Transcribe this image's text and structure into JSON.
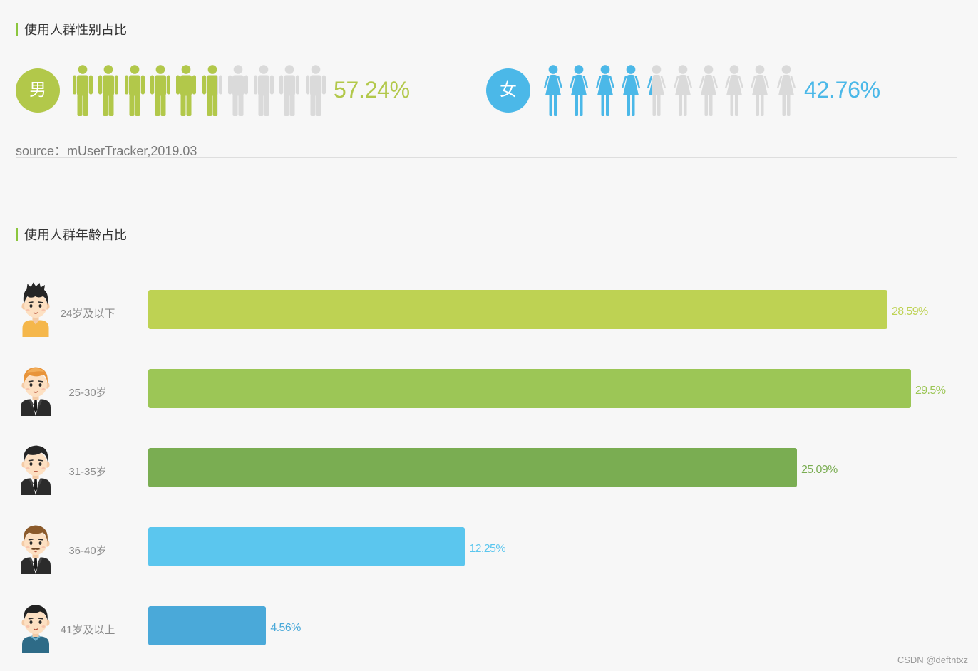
{
  "chart_data": [
    {
      "type": "bar",
      "title": "使用人群性别占比",
      "categories": [
        "男",
        "女"
      ],
      "values": [
        57.24,
        42.76
      ],
      "value_labels": [
        "57.24%",
        "42.76%"
      ],
      "icon_count": 10,
      "icons": [
        "male-figure-icon",
        "female-figure-icon"
      ],
      "colors": [
        "#b2c84a",
        "#4bb8e8"
      ],
      "empty_color": "#dadada",
      "source": "source：mUserTracker,2019.03"
    },
    {
      "type": "bar",
      "orientation": "horizontal",
      "title": "使用人群年龄占比",
      "categories": [
        "24岁及以下",
        "25-30岁",
        "31-35岁",
        "36-40岁",
        "41岁及以上"
      ],
      "values": [
        28.59,
        29.5,
        25.09,
        12.25,
        4.56
      ],
      "value_labels": [
        "28.59%",
        "29.5%",
        "25.09%",
        "12.25%",
        "4.56%"
      ],
      "colors": [
        "#bed253",
        "#9cc656",
        "#7aad52",
        "#5bc6ee",
        "#4aa9d9"
      ],
      "icons": [
        "young-man-yellow-shirt-avatar-icon",
        "orange-haired-man-suit-avatar-icon",
        "black-haired-man-suit-avatar-icon",
        "mustached-man-suit-avatar-icon",
        "man-blue-shirt-avatar-icon"
      ]
    }
  ],
  "accent_color": "#8cc63e",
  "watermark": "CSDN @deftntxz"
}
